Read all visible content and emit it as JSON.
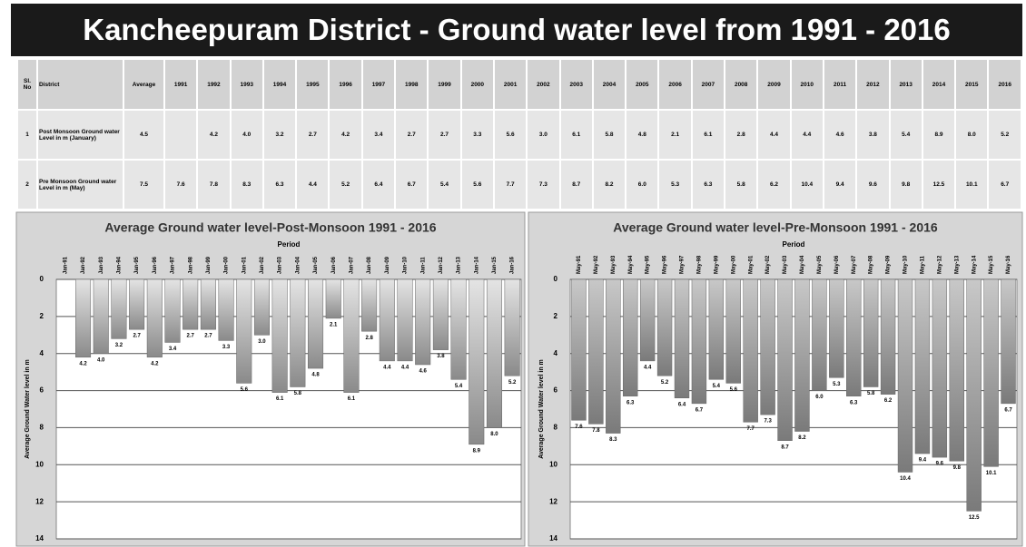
{
  "title": "Kancheepuram District - Ground water level from 1991 - 2016",
  "table": {
    "header": [
      "Sl. No",
      "District",
      "Average",
      "1991",
      "1992",
      "1993",
      "1994",
      "1995",
      "1996",
      "1997",
      "1998",
      "1999",
      "2000",
      "2001",
      "2002",
      "2003",
      "2004",
      "2005",
      "2006",
      "2007",
      "2008",
      "2009",
      "2010",
      "2011",
      "2012",
      "2013",
      "2014",
      "2015",
      "2016"
    ],
    "rows": [
      [
        "1",
        "Post Monsoon Ground water Level in m (January)",
        "4.5",
        "",
        "4.2",
        "4.0",
        "3.2",
        "2.7",
        "4.2",
        "3.4",
        "2.7",
        "2.7",
        "3.3",
        "5.6",
        "3.0",
        "6.1",
        "5.8",
        "4.8",
        "2.1",
        "6.1",
        "2.8",
        "4.4",
        "4.4",
        "4.6",
        "3.8",
        "5.4",
        "8.9",
        "8.0",
        "5.2"
      ],
      [
        "2",
        "Pre Monsoon Ground water Level in m (May)",
        "7.5",
        "7.6",
        "7.8",
        "8.3",
        "6.3",
        "4.4",
        "5.2",
        "6.4",
        "6.7",
        "5.4",
        "5.6",
        "7.7",
        "7.3",
        "8.7",
        "8.2",
        "6.0",
        "5.3",
        "6.3",
        "5.8",
        "6.2",
        "10.4",
        "9.4",
        "9.6",
        "9.8",
        "12.5",
        "10.1",
        "6.7"
      ]
    ]
  },
  "chart_data": [
    {
      "type": "bar",
      "title": "Average Ground water level-Post-Monsoon 1991 - 2016",
      "xlabel": "Period",
      "ylabel": "Average Ground Water level in m",
      "categories": [
        "Jan-91",
        "Jan-92",
        "Jan-93",
        "Jan-94",
        "Jan-95",
        "Jan-96",
        "Jan-97",
        "Jan-98",
        "Jan-99",
        "Jan-00",
        "Jan-01",
        "Jan-02",
        "Jan-03",
        "Jan-04",
        "Jan-05",
        "Jan-06",
        "Jan-07",
        "Jan-08",
        "Jan-09",
        "Jan-10",
        "Jan-11",
        "Jan-12",
        "Jan-13",
        "Jan-14",
        "Jan-15",
        "Jan-16"
      ],
      "values": [
        null,
        4.2,
        4.0,
        3.2,
        2.7,
        4.2,
        3.4,
        2.7,
        2.7,
        3.3,
        5.6,
        3.0,
        6.1,
        5.8,
        4.8,
        2.1,
        6.1,
        2.8,
        4.4,
        4.4,
        4.6,
        3.8,
        5.4,
        8.9,
        8.0,
        5.2
      ],
      "value_labels": [
        null,
        "4.2",
        "4.0",
        "3.2",
        "2.7",
        "4.2",
        "3.4",
        "2.7",
        "2.7",
        "3.3",
        "5.6",
        "3.0",
        "6.1",
        "5.8",
        "4.8",
        "2.1",
        "6.1",
        "2.8",
        "4.4",
        "4.4",
        "4.6",
        "3.8",
        "5.4",
        "8.9",
        "8.0",
        "5.2"
      ],
      "color": "#a8a8a8",
      "ylim": [
        0,
        14
      ],
      "yticks": [
        0,
        2,
        4,
        6,
        8,
        10,
        12,
        14
      ],
      "y_inverted": true,
      "grid": true
    },
    {
      "type": "bar",
      "title": "Average Ground water level-Pre-Monsoon 1991 - 2016",
      "xlabel": "Period",
      "ylabel": "Average Ground Water level in m",
      "categories": [
        "May-91",
        "May-92",
        "May-93",
        "May-94",
        "May-95",
        "May-96",
        "May-97",
        "May-98",
        "May-99",
        "May-00",
        "May-01",
        "May-02",
        "May-03",
        "May-04",
        "May-05",
        "May-06",
        "May-07",
        "May-08",
        "May-09",
        "May-10",
        "May-11",
        "May-12",
        "May-13",
        "May-14",
        "May-15",
        "May-16"
      ],
      "values": [
        7.6,
        7.8,
        8.3,
        6.3,
        4.4,
        5.2,
        6.4,
        6.7,
        5.4,
        5.6,
        7.7,
        7.3,
        8.7,
        8.2,
        6.0,
        5.3,
        6.3,
        5.8,
        6.2,
        10.4,
        9.4,
        9.6,
        9.8,
        12.5,
        10.1,
        6.7
      ],
      "value_labels": [
        "7.6",
        "7.8",
        "8.3",
        "6.3",
        "4.4",
        "5.2",
        "6.4",
        "6.7",
        "5.4",
        "5.6",
        "7.7",
        "7.3",
        "8.7",
        "8.2",
        "6.0",
        "5.3",
        "6.3",
        "5.8",
        "6.2",
        "10.4",
        "9.4",
        "9.6",
        "9.8",
        "12.5",
        "10.1",
        "6.7"
      ],
      "color": "#8e8e8e",
      "ylim": [
        0,
        14
      ],
      "yticks": [
        0,
        2,
        4,
        6,
        8,
        10,
        12,
        14
      ],
      "y_inverted": true,
      "grid": true
    }
  ]
}
